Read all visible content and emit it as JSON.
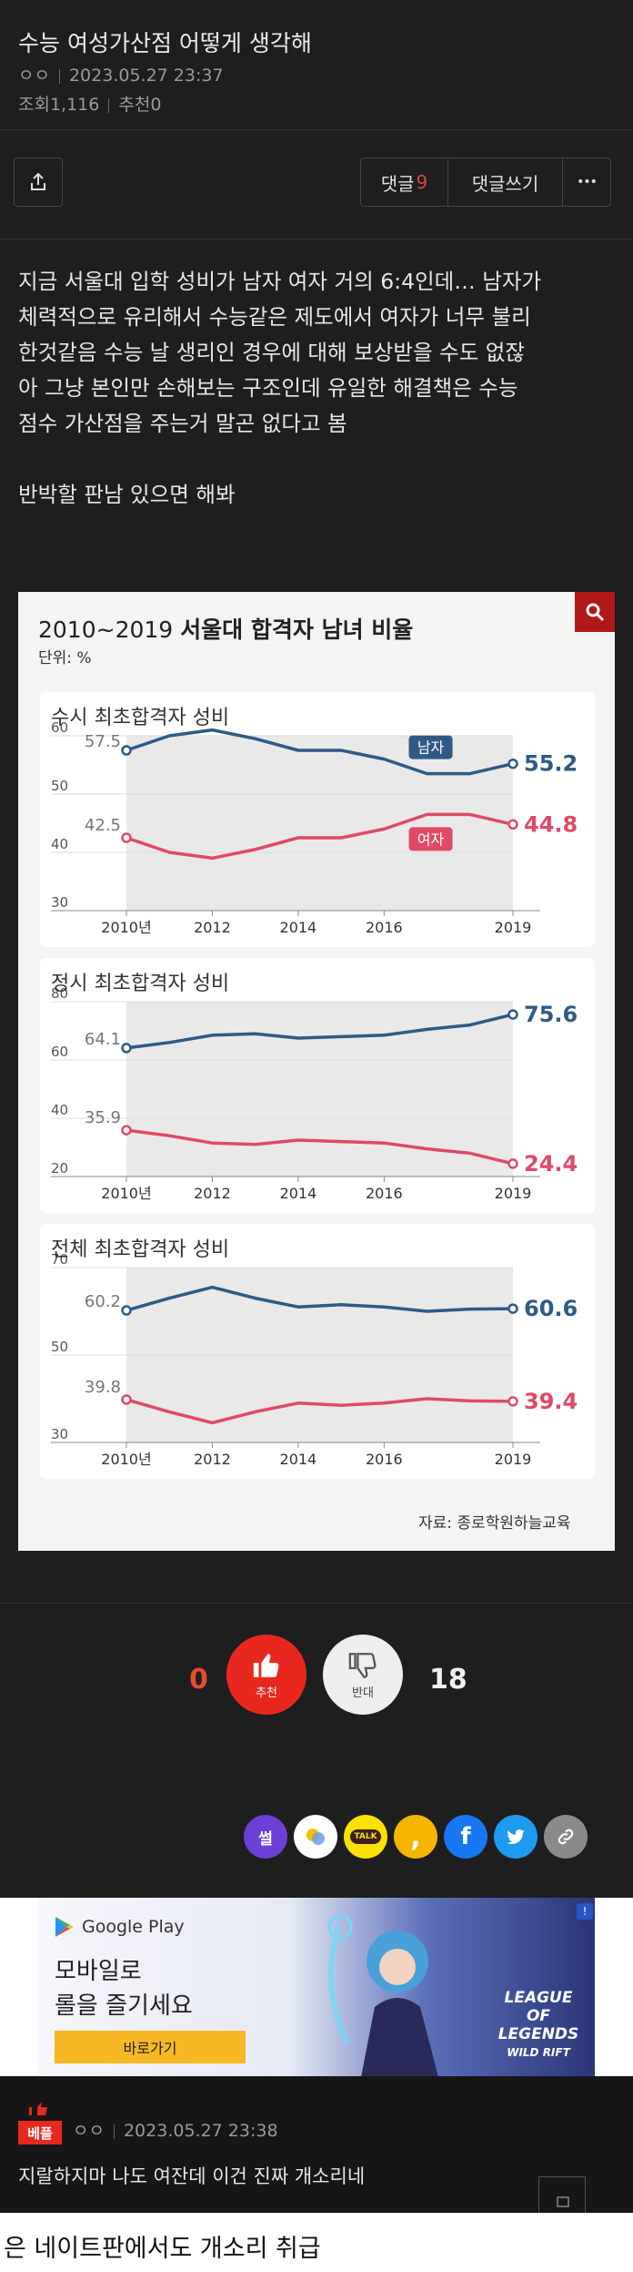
{
  "post": {
    "title": "수능 여성가산점 어떻게 생각해",
    "author": "ㅇㅇ",
    "datetime": "2023.05.27 23:37",
    "views": "조회1,116",
    "recommends": "추천0"
  },
  "toolbar": {
    "share_icon": "share-icon",
    "comments_label": "댓글",
    "comments_count": "9",
    "write_comment_label": "댓글쓰기",
    "more_label": "•••"
  },
  "body": {
    "lines": [
      "지금 서울대 입학 성비가 남자 여자 거의 6:4인데… 남자가",
      "체력적으로 유리해서 수능같은 제도에서 여자가 너무 불리",
      "한것같음 수능 날 생리인 경우에 대해 보상받을 수도 없잖",
      "아 그냥 본인만 손해보는 구조인데 유일한 해결책은 수능",
      "점수 가산점을 주는거 말곤 없다고 봄"
    ],
    "closing": "반박할 판남 있으면 해봐"
  },
  "chart_image": {
    "title_range": "2010~2019",
    "title_main": "서울대 합격자 남녀 비율",
    "unit": "단위: %",
    "source": "자료: 종로학원하늘교육",
    "male_color": "#2f5a86",
    "female_color": "#e04a66"
  },
  "chart_data": [
    {
      "type": "line",
      "title": "수시 최초합격자 성비",
      "x": [
        "2010년",
        "2011",
        "2012",
        "2013",
        "2014",
        "2015",
        "2016",
        "2017",
        "2018",
        "2019"
      ],
      "xticks": [
        "2010년",
        "2012",
        "2014",
        "2016",
        "2019"
      ],
      "ylim": [
        30,
        60
      ],
      "yticks": [
        "60",
        "50",
        "40",
        "30"
      ],
      "series": [
        {
          "name": "남자",
          "values": [
            57.5,
            60,
            61,
            59.5,
            57.5,
            57.5,
            56,
            53.5,
            53.5,
            55.2
          ],
          "start_label": "57.5",
          "end_label": "55.2"
        },
        {
          "name": "여자",
          "values": [
            42.5,
            40,
            39,
            40.5,
            42.5,
            42.5,
            44,
            46.5,
            46.5,
            44.8
          ],
          "start_label": "42.5",
          "end_label": "44.8"
        }
      ]
    },
    {
      "type": "line",
      "title": "정시 최초합격자 성비",
      "x": [
        "2010년",
        "2011",
        "2012",
        "2013",
        "2014",
        "2015",
        "2016",
        "2017",
        "2018",
        "2019"
      ],
      "xticks": [
        "2010년",
        "2012",
        "2014",
        "2016",
        "2019"
      ],
      "ylim": [
        20,
        80
      ],
      "yticks": [
        "80",
        "60",
        "40",
        "20"
      ],
      "series": [
        {
          "name": "남자",
          "values": [
            64.1,
            66,
            68.5,
            69,
            67.5,
            68,
            68.5,
            70.5,
            72,
            75.6
          ],
          "start_label": "64.1",
          "end_label": "75.6"
        },
        {
          "name": "여자",
          "values": [
            35.9,
            34,
            31.5,
            31,
            32.5,
            32,
            31.5,
            29.5,
            28,
            24.4
          ],
          "start_label": "35.9",
          "end_label": "24.4"
        }
      ]
    },
    {
      "type": "line",
      "title": "전체 최초합격자 성비",
      "x": [
        "2010년",
        "2011",
        "2012",
        "2013",
        "2014",
        "2015",
        "2016",
        "2017",
        "2018",
        "2019"
      ],
      "xticks": [
        "2010년",
        "2012",
        "2014",
        "2016",
        "2019"
      ],
      "ylim": [
        30,
        70
      ],
      "yticks": [
        "70",
        "50",
        "30"
      ],
      "series": [
        {
          "name": "남자",
          "values": [
            60.2,
            63,
            65.5,
            63,
            61,
            61.5,
            61,
            60,
            60.5,
            60.6
          ],
          "start_label": "60.2",
          "end_label": "60.6"
        },
        {
          "name": "여자",
          "values": [
            39.8,
            37,
            34.5,
            37,
            39,
            38.5,
            39,
            40,
            39.5,
            39.4
          ],
          "start_label": "39.8",
          "end_label": "39.4"
        }
      ]
    }
  ],
  "reactions": {
    "like_count": "0",
    "like_label": "추천",
    "dislike_label": "반대",
    "dislike_count": "18"
  },
  "social": {
    "ssul_label": "썰",
    "kakaotalk_label": "TALK",
    "icons": [
      "ssul-icon",
      "kakao-story-icon",
      "kakaotalk-icon",
      "comma-icon",
      "facebook-icon",
      "twitter-icon",
      "link-icon"
    ]
  },
  "ad": {
    "brand": "Google Play",
    "title": "모바일로\n롤을 즐기세요",
    "cta": "바로가기",
    "game_logo": "LEAGUE OF LEGENDS",
    "game_sub": "WILD RIFT"
  },
  "best_comment": {
    "badge": "베플",
    "author": "ㅇㅇ",
    "datetime": "2023.05.27 23:38",
    "text": "지랄하지마 나도 여잔데 이건 진짜 개소리네"
  },
  "caption": "은 네이트판에서도 개소리 취급"
}
